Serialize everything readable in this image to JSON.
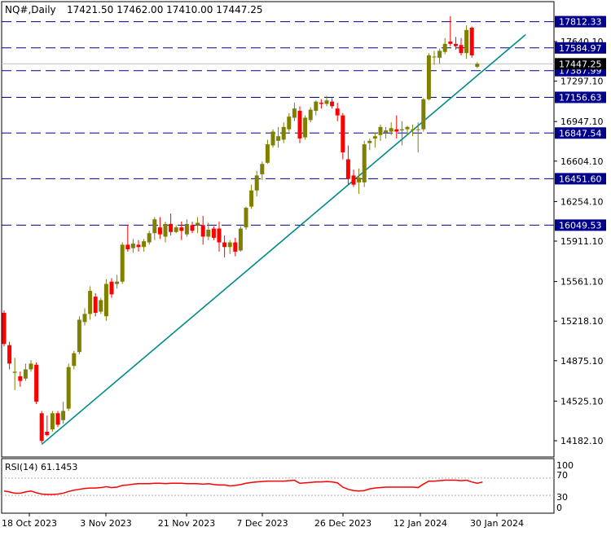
{
  "header": {
    "symbol": "NQ#,Daily",
    "ohlc": "17421.50 17462.00 17410.00 17447.25"
  },
  "rsi_panel": {
    "label": "RSI(14) 61.1453",
    "levels": [
      "100",
      "70",
      "30",
      "0"
    ]
  },
  "colors": {
    "bull": "#808000",
    "bear": "#ff0000",
    "level_line": "#00008b",
    "trendline": "#008b8b",
    "rsi": "#ff0000",
    "axis": "#000000",
    "grid_level_70_30": "#b0b0b0"
  },
  "chart_data": {
    "type": "candlestick",
    "symbol": "NQ#",
    "timeframe": "Daily",
    "last_bar": {
      "open": 17421.5,
      "high": 17462.0,
      "low": 17410.0,
      "close": 17447.25
    },
    "y_ticks": [
      "17640.10",
      "17297.10",
      "16947.10",
      "16604.10",
      "16254.10",
      "15911.10",
      "15561.10",
      "15218.10",
      "14875.10",
      "14525.10",
      "14182.10"
    ],
    "x_ticks": [
      "18 Oct 2023",
      "3 Nov 2023",
      "21 Nov 2023",
      "7 Dec 2023",
      "26 Dec 2023",
      "12 Jan 2024",
      "30 Jan 2024"
    ],
    "horizontal_levels": [
      "17812.33",
      "17584.97",
      "17387.99",
      "17156.63",
      "16847.54",
      "16451.60",
      "16049.53"
    ],
    "current_price_label": "17447.25",
    "trendline": {
      "from": {
        "bar": 7,
        "price": 14150
      },
      "to": {
        "bar": 97,
        "price": 17700
      }
    },
    "candles": [
      {
        "o": 15290,
        "h": 15310,
        "l": 15000,
        "c": 15020
      },
      {
        "o": 15010,
        "h": 15040,
        "l": 14800,
        "c": 14850
      },
      {
        "o": 14770,
        "h": 14900,
        "l": 14620,
        "c": 14780
      },
      {
        "o": 14740,
        "h": 14780,
        "l": 14650,
        "c": 14700
      },
      {
        "o": 14720,
        "h": 14850,
        "l": 14700,
        "c": 14800
      },
      {
        "o": 14800,
        "h": 14880,
        "l": 14780,
        "c": 14850
      },
      {
        "o": 14840,
        "h": 14860,
        "l": 14500,
        "c": 14520
      },
      {
        "o": 14420,
        "h": 14440,
        "l": 14160,
        "c": 14180
      },
      {
        "o": 14260,
        "h": 14400,
        "l": 14220,
        "c": 14230
      },
      {
        "o": 14280,
        "h": 14440,
        "l": 14260,
        "c": 14420
      },
      {
        "o": 14420,
        "h": 14440,
        "l": 14300,
        "c": 14320
      },
      {
        "o": 14360,
        "h": 14520,
        "l": 14330,
        "c": 14440
      },
      {
        "o": 14460,
        "h": 14850,
        "l": 14440,
        "c": 14820
      },
      {
        "o": 14830,
        "h": 14960,
        "l": 14800,
        "c": 14940
      },
      {
        "o": 14950,
        "h": 15260,
        "l": 14930,
        "c": 15230
      },
      {
        "o": 15210,
        "h": 15330,
        "l": 15180,
        "c": 15280
      },
      {
        "o": 15280,
        "h": 15520,
        "l": 15230,
        "c": 15480
      },
      {
        "o": 15430,
        "h": 15460,
        "l": 15260,
        "c": 15290
      },
      {
        "o": 15300,
        "h": 15420,
        "l": 15280,
        "c": 15400
      },
      {
        "o": 15260,
        "h": 15580,
        "l": 15220,
        "c": 15540
      },
      {
        "o": 15560,
        "h": 15590,
        "l": 15420,
        "c": 15450
      },
      {
        "o": 15540,
        "h": 15620,
        "l": 15500,
        "c": 15560
      },
      {
        "o": 15560,
        "h": 15900,
        "l": 15540,
        "c": 15880
      },
      {
        "o": 15880,
        "h": 16050,
        "l": 15820,
        "c": 15840
      },
      {
        "o": 15850,
        "h": 15930,
        "l": 15810,
        "c": 15890
      },
      {
        "o": 15880,
        "h": 15920,
        "l": 15820,
        "c": 15860
      },
      {
        "o": 15860,
        "h": 15930,
        "l": 15820,
        "c": 15910
      },
      {
        "o": 15900,
        "h": 16000,
        "l": 15880,
        "c": 15980
      },
      {
        "o": 15980,
        "h": 16120,
        "l": 15920,
        "c": 16100
      },
      {
        "o": 16030,
        "h": 16120,
        "l": 15930,
        "c": 15970
      },
      {
        "o": 15950,
        "h": 16080,
        "l": 15900,
        "c": 16060
      },
      {
        "o": 16060,
        "h": 16150,
        "l": 15960,
        "c": 15990
      },
      {
        "o": 15990,
        "h": 16050,
        "l": 15980,
        "c": 16030
      },
      {
        "o": 16030,
        "h": 16080,
        "l": 15920,
        "c": 16000
      },
      {
        "o": 15970,
        "h": 16100,
        "l": 15950,
        "c": 16060
      },
      {
        "o": 16050,
        "h": 16080,
        "l": 15980,
        "c": 16000
      },
      {
        "o": 16050,
        "h": 16120,
        "l": 15980,
        "c": 16070
      },
      {
        "o": 16050,
        "h": 16130,
        "l": 15880,
        "c": 15950
      },
      {
        "o": 15950,
        "h": 16070,
        "l": 15920,
        "c": 16010
      },
      {
        "o": 16020,
        "h": 16040,
        "l": 15920,
        "c": 15940
      },
      {
        "o": 16020,
        "h": 16080,
        "l": 15820,
        "c": 15900
      },
      {
        "o": 15900,
        "h": 15960,
        "l": 15770,
        "c": 15860
      },
      {
        "o": 15860,
        "h": 15920,
        "l": 15800,
        "c": 15900
      },
      {
        "o": 15900,
        "h": 15940,
        "l": 15780,
        "c": 15820
      },
      {
        "o": 15830,
        "h": 16040,
        "l": 15820,
        "c": 16020
      },
      {
        "o": 16030,
        "h": 16210,
        "l": 16010,
        "c": 16200
      },
      {
        "o": 16210,
        "h": 16400,
        "l": 16190,
        "c": 16350
      },
      {
        "o": 16350,
        "h": 16520,
        "l": 16300,
        "c": 16480
      },
      {
        "o": 16490,
        "h": 16600,
        "l": 16440,
        "c": 16580
      },
      {
        "o": 16590,
        "h": 16790,
        "l": 16580,
        "c": 16750
      },
      {
        "o": 16740,
        "h": 16880,
        "l": 16720,
        "c": 16860
      },
      {
        "o": 16780,
        "h": 16900,
        "l": 16720,
        "c": 16820
      },
      {
        "o": 16790,
        "h": 16940,
        "l": 16760,
        "c": 16900
      },
      {
        "o": 16880,
        "h": 17020,
        "l": 16860,
        "c": 16990
      },
      {
        "o": 16980,
        "h": 17110,
        "l": 16950,
        "c": 17060
      },
      {
        "o": 17040,
        "h": 17080,
        "l": 16760,
        "c": 16800
      },
      {
        "o": 16810,
        "h": 17000,
        "l": 16790,
        "c": 16980
      },
      {
        "o": 16960,
        "h": 17070,
        "l": 16940,
        "c": 17050
      },
      {
        "o": 17040,
        "h": 17130,
        "l": 17000,
        "c": 17120
      },
      {
        "o": 17110,
        "h": 17140,
        "l": 17060,
        "c": 17100
      },
      {
        "o": 17100,
        "h": 17170,
        "l": 17080,
        "c": 17130
      },
      {
        "o": 17120,
        "h": 17150,
        "l": 17060,
        "c": 17080
      },
      {
        "o": 17060,
        "h": 17110,
        "l": 16950,
        "c": 17000
      },
      {
        "o": 17000,
        "h": 17020,
        "l": 16620,
        "c": 16680
      },
      {
        "o": 16620,
        "h": 16740,
        "l": 16400,
        "c": 16450
      },
      {
        "o": 16480,
        "h": 16530,
        "l": 16380,
        "c": 16400
      },
      {
        "o": 16420,
        "h": 16540,
        "l": 16320,
        "c": 16460
      },
      {
        "o": 16420,
        "h": 16780,
        "l": 16380,
        "c": 16750
      },
      {
        "o": 16760,
        "h": 16800,
        "l": 16700,
        "c": 16780
      },
      {
        "o": 16800,
        "h": 16850,
        "l": 16720,
        "c": 16820
      },
      {
        "o": 16830,
        "h": 16920,
        "l": 16780,
        "c": 16900
      },
      {
        "o": 16850,
        "h": 16900,
        "l": 16800,
        "c": 16870
      },
      {
        "o": 16860,
        "h": 16940,
        "l": 16830,
        "c": 16890
      },
      {
        "o": 16880,
        "h": 17000,
        "l": 16800,
        "c": 16860
      },
      {
        "o": 16870,
        "h": 16950,
        "l": 16740,
        "c": 16880
      },
      {
        "o": 16880,
        "h": 16910,
        "l": 16830,
        "c": 16900
      },
      {
        "o": 16880,
        "h": 16920,
        "l": 16820,
        "c": 16880
      },
      {
        "o": 16880,
        "h": 16940,
        "l": 16680,
        "c": 16880
      },
      {
        "o": 16880,
        "h": 17150,
        "l": 16860,
        "c": 17140
      },
      {
        "o": 17140,
        "h": 17540,
        "l": 17130,
        "c": 17520
      },
      {
        "o": 17510,
        "h": 17560,
        "l": 17440,
        "c": 17510
      },
      {
        "o": 17500,
        "h": 17580,
        "l": 17450,
        "c": 17560
      },
      {
        "o": 17550,
        "h": 17670,
        "l": 17530,
        "c": 17620
      },
      {
        "o": 17640,
        "h": 17860,
        "l": 17600,
        "c": 17620
      },
      {
        "o": 17620,
        "h": 17680,
        "l": 17570,
        "c": 17600
      },
      {
        "o": 17610,
        "h": 17670,
        "l": 17520,
        "c": 17540
      },
      {
        "o": 17540,
        "h": 17780,
        "l": 17490,
        "c": 17740
      },
      {
        "o": 17760,
        "h": 17770,
        "l": 17500,
        "c": 17520
      },
      {
        "o": 17421.5,
        "h": 17462,
        "l": 17410,
        "c": 17447.25
      }
    ],
    "rsi": [
      40,
      38,
      35,
      35,
      38,
      40,
      36,
      33,
      32,
      32,
      33,
      35,
      39,
      42,
      44,
      46,
      47,
      47,
      48,
      50,
      48,
      49,
      53,
      54,
      56,
      57,
      57,
      57,
      58,
      58,
      57,
      58,
      58,
      58,
      57,
      57,
      57,
      56,
      57,
      55,
      54,
      54,
      52,
      53,
      55,
      58,
      60,
      61,
      62,
      63,
      63,
      63,
      63,
      64,
      65,
      58,
      59,
      60,
      61,
      61,
      62,
      61,
      59,
      49,
      44,
      41,
      40,
      41,
      45,
      47,
      48,
      49,
      49,
      49,
      49,
      49,
      49,
      48,
      56,
      63,
      63,
      64,
      65,
      65,
      65,
      64,
      65,
      61,
      58,
      61
    ],
    "rsi_levels": [
      70,
      30
    ],
    "rsi_range": [
      0,
      100
    ]
  }
}
